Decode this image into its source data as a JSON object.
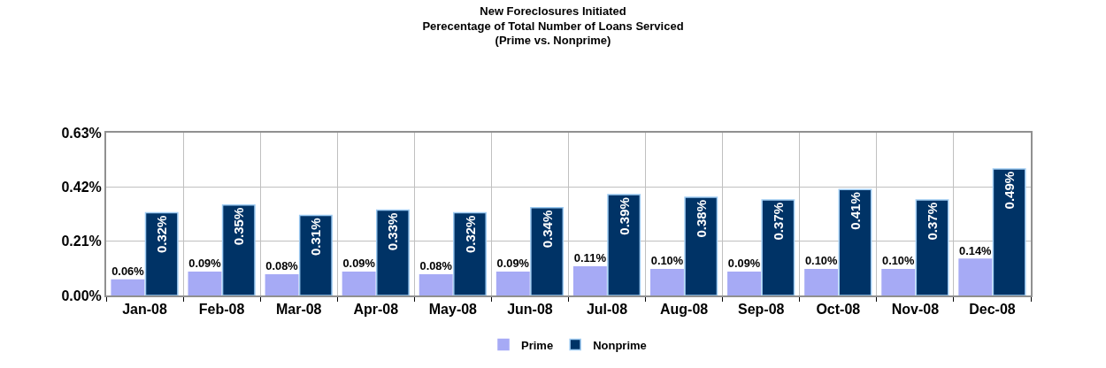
{
  "chart_data": {
    "type": "bar",
    "title": "New Foreclosures Initiated\nPerecentage of Total Number of Loans Serviced\n(Prime vs. Nonprime)",
    "categories": [
      "Jan-08",
      "Feb-08",
      "Mar-08",
      "Apr-08",
      "May-08",
      "Jun-08",
      "Jul-08",
      "Aug-08",
      "Sep-08",
      "Oct-08",
      "Nov-08",
      "Dec-08"
    ],
    "series": [
      {
        "name": "Prime",
        "color": "#a6aaf5",
        "values": [
          0.06,
          0.09,
          0.08,
          0.09,
          0.08,
          0.09,
          0.11,
          0.1,
          0.09,
          0.1,
          0.1,
          0.14
        ],
        "value_labels": [
          "0.06%",
          "0.09%",
          "0.08%",
          "0.09%",
          "0.08%",
          "0.09%",
          "0.11%",
          "0.10%",
          "0.09%",
          "0.10%",
          "0.10%",
          "0.14%"
        ]
      },
      {
        "name": "Nonprime",
        "color": "#003366",
        "values": [
          0.32,
          0.35,
          0.31,
          0.33,
          0.32,
          0.34,
          0.39,
          0.38,
          0.37,
          0.41,
          0.37,
          0.49
        ],
        "value_labels": [
          "0.32%",
          "0.35%",
          "0.31%",
          "0.33%",
          "0.32%",
          "0.34%",
          "0.39%",
          "0.38%",
          "0.37%",
          "0.41%",
          "0.37%",
          "0.49%"
        ]
      }
    ],
    "ylim": [
      0,
      0.63
    ],
    "yticks": [
      {
        "value": 0,
        "label": "0.00%"
      },
      {
        "value": 0.21,
        "label": "0.21%"
      },
      {
        "value": 0.42,
        "label": "0.42%"
      },
      {
        "value": 0.63,
        "label": "0.63%"
      }
    ],
    "grid": true,
    "legend": "bottom"
  }
}
